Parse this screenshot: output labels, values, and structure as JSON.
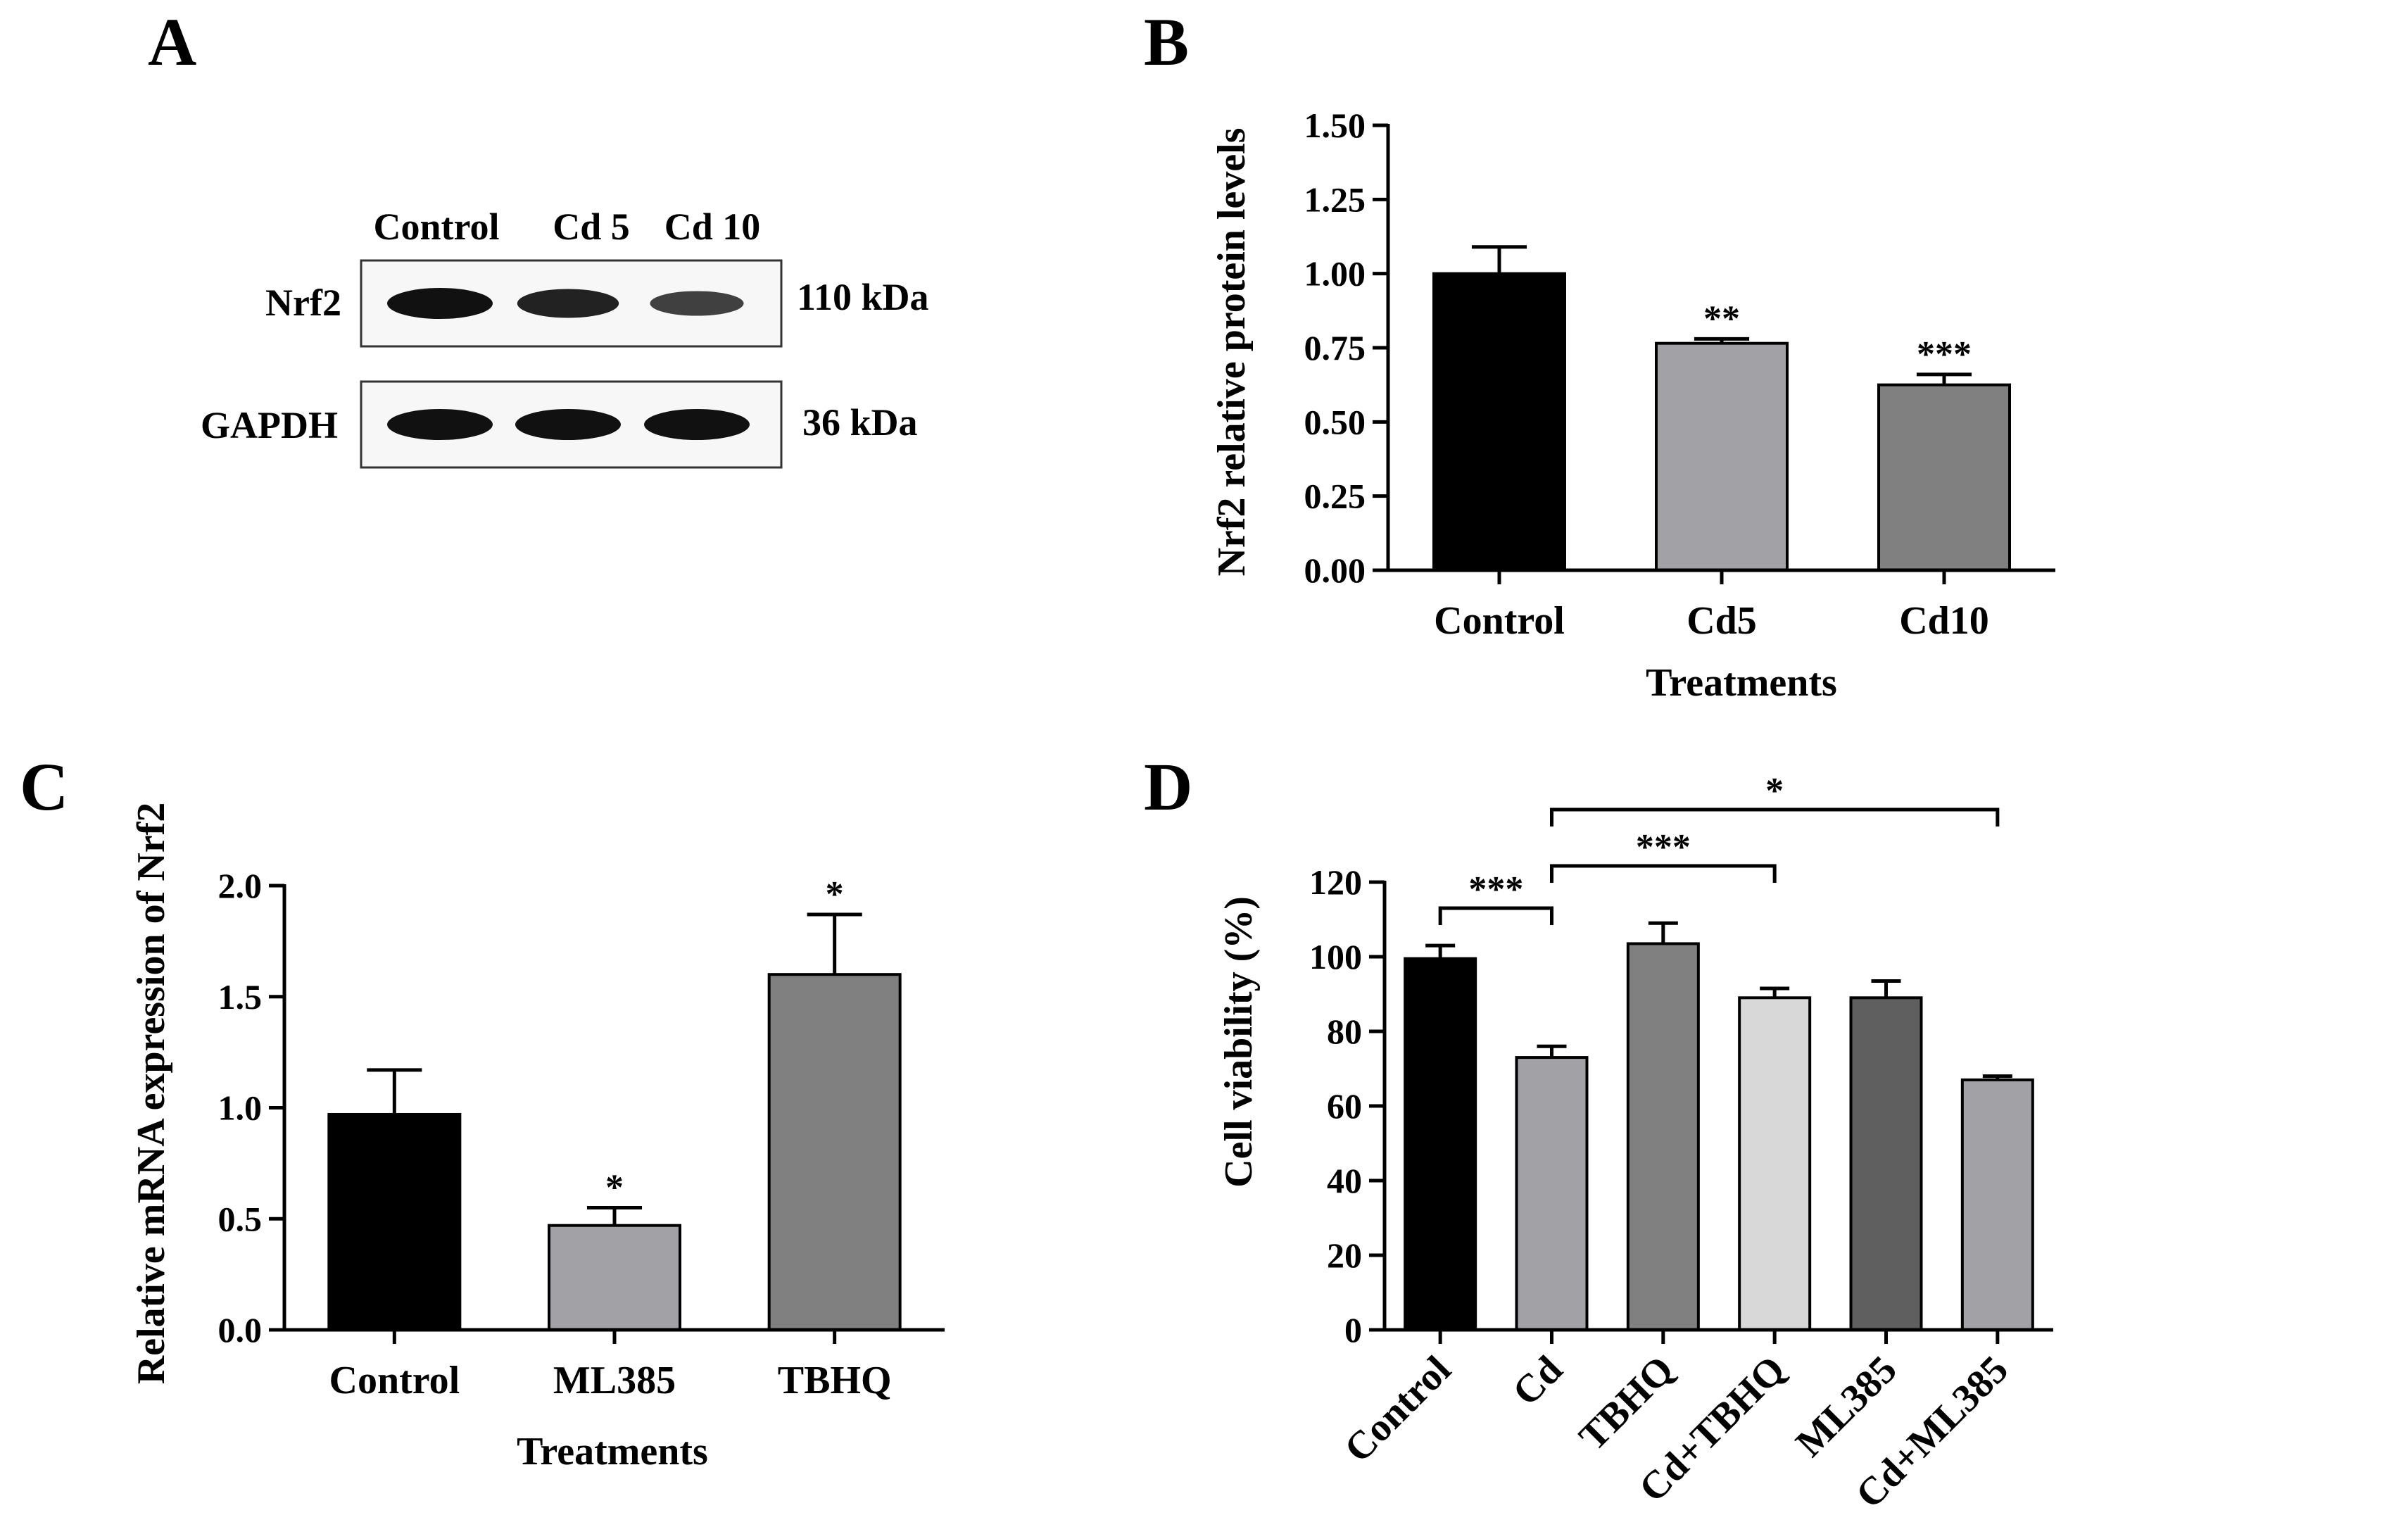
{
  "colors": {
    "black": "#000000",
    "light_gray": "#a2a2a6",
    "mid_gray": "#808080",
    "very_light_gray": "#d8d8d8",
    "dark_gray": "#5f5f5f",
    "blot_frame": "#333333"
  },
  "panels": {
    "A": {
      "letter": "A",
      "lanes": [
        "Control",
        "Cd 5",
        "Cd 10"
      ],
      "rows": [
        {
          "name": "Nrf2",
          "size": "110 kDa",
          "band_intensity": [
            1.0,
            0.85,
            0.55
          ]
        },
        {
          "name": "GAPDH",
          "size": "36 kDa",
          "band_intensity": [
            1.0,
            1.0,
            1.0
          ]
        }
      ]
    },
    "B": {
      "letter": "B"
    },
    "C": {
      "letter": "C"
    },
    "D": {
      "letter": "D"
    }
  },
  "chart_data": [
    {
      "panel": "B",
      "type": "bar",
      "categories": [
        "Control",
        "Cd5",
        "Cd10"
      ],
      "values": [
        1.0,
        0.765,
        0.625
      ],
      "errors": [
        0.09,
        0.015,
        0.035
      ],
      "significance": [
        "",
        "**",
        "***"
      ],
      "bar_colors": [
        "#000000",
        "#a2a2a6",
        "#808080"
      ],
      "xlabel": "Treatments",
      "ylabel": "Nrf2 relative protein levels",
      "ylim": [
        0,
        1.5
      ],
      "yticks": [
        "0.00",
        "0.25",
        "0.50",
        "0.75",
        "1.00",
        "1.25",
        "1.50"
      ],
      "ytick_values": [
        0,
        0.25,
        0.5,
        0.75,
        1.0,
        1.25,
        1.5
      ],
      "grid": false
    },
    {
      "panel": "C",
      "type": "bar",
      "categories": [
        "Control",
        "ML385",
        "TBHQ"
      ],
      "values": [
        0.97,
        0.47,
        1.6
      ],
      "errors": [
        0.2,
        0.08,
        0.27
      ],
      "significance": [
        "",
        "*",
        "*"
      ],
      "bar_colors": [
        "#000000",
        "#a2a2a6",
        "#808080"
      ],
      "xlabel": "Treatments",
      "ylabel": "Relative mRNA expression of Nrf2",
      "ylim": [
        0,
        2.0
      ],
      "yticks": [
        "0.0",
        "0.5",
        "1.0",
        "1.5",
        "2.0"
      ],
      "ytick_values": [
        0,
        0.5,
        1.0,
        1.5,
        2.0
      ],
      "grid": false
    },
    {
      "panel": "D",
      "type": "bar",
      "categories": [
        "Control",
        "Cd",
        "TBHQ",
        "Cd+TBHQ",
        "ML385",
        "Cd+ML385"
      ],
      "values": [
        99.5,
        73,
        103.5,
        89,
        89,
        67
      ],
      "errors": [
        3.5,
        3,
        5.5,
        2.5,
        4.5,
        1
      ],
      "significance": [
        "",
        "",
        "",
        "",
        "",
        ""
      ],
      "bar_colors": [
        "#000000",
        "#a2a2a6",
        "#808080",
        "#d8d8d8",
        "#5f5f5f",
        "#a2a2a6"
      ],
      "xlabel": "",
      "ylabel": "Cell viability (%)",
      "ylim": [
        0,
        120
      ],
      "yticks": [
        "0",
        "20",
        "40",
        "60",
        "80",
        "100",
        "120"
      ],
      "ytick_values": [
        0,
        20,
        40,
        60,
        80,
        100,
        120
      ],
      "brackets": [
        {
          "from": 0,
          "to": 1,
          "label": "***",
          "level": 1
        },
        {
          "from": 1,
          "to": 3,
          "label": "***",
          "level": 2
        },
        {
          "from": 1,
          "to": 5,
          "label": "*",
          "level": 3
        }
      ],
      "grid": false
    }
  ]
}
